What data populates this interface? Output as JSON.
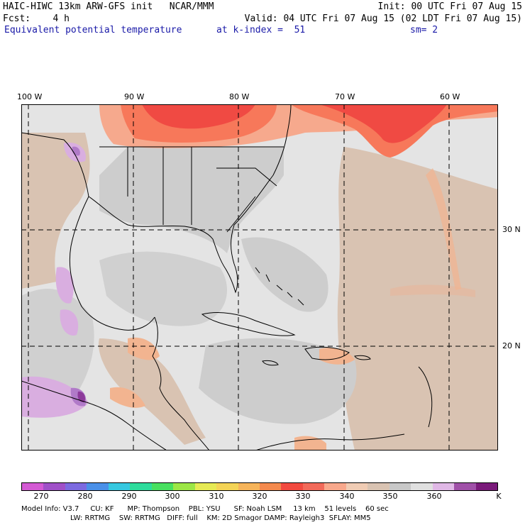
{
  "header": {
    "model_title": "HAIC-HIWC 13km ARW-GFS init   NCAR/MMM",
    "init": "Init: 00 UTC Fri 07 Aug 15",
    "fcst": "Fcst:    4 h",
    "valid": "Valid: 04 UTC Fri 07 Aug 15 (02 LDT Fri 07 Aug 15)",
    "field": "Equivalent potential temperature",
    "level": "at k-index =  51",
    "smoothing": "sm= 2"
  },
  "map": {
    "lon_labels": [
      "100 W",
      "90 W",
      "80 W",
      "70 W",
      "60 W"
    ],
    "lat_labels": [
      "30 N",
      "20 N"
    ],
    "colors": {
      "background": "#e4e4e4",
      "land_light": "#cdcdcd",
      "tan": "#d9c3b2",
      "tan_dark": "#e3b9a0",
      "orange": "#f2b490",
      "warm_light": "#f6a98d",
      "warm": "#f7785a",
      "hot": "#f04a43",
      "lilac": "#d9aee0",
      "violet": "#b07ac8",
      "purple": "#8c3a9a"
    }
  },
  "colorbar": {
    "colors": [
      "#d45ad4",
      "#a050c8",
      "#7c6ae0",
      "#4a90e8",
      "#36c8e0",
      "#2edc9c",
      "#48e060",
      "#9ce646",
      "#e6ea54",
      "#f4d456",
      "#f6b45a",
      "#f48a4e",
      "#f24a40",
      "#f26a5a",
      "#f8a88c",
      "#f0ccb4",
      "#d9c3b2",
      "#c8c8c8",
      "#e0e0e0",
      "#e0b8e6",
      "#a050a8",
      "#7a1a7a"
    ],
    "tick_labels": [
      "270",
      "280",
      "290",
      "300",
      "310",
      "320",
      "330",
      "340",
      "350",
      "360"
    ],
    "unit": "K"
  },
  "footer": {
    "line1": "Model Info: V3.7     CU: KF      MP: Thompson    PBL: YSU      SF: Noah LSM     13 km    51 levels    60 sec",
    "line2": "LW: RRTMG    SW: RRTMG   DIFF: full    KM: 2D Smagor DAMP: Rayleigh3  SFLAY: MM5"
  }
}
